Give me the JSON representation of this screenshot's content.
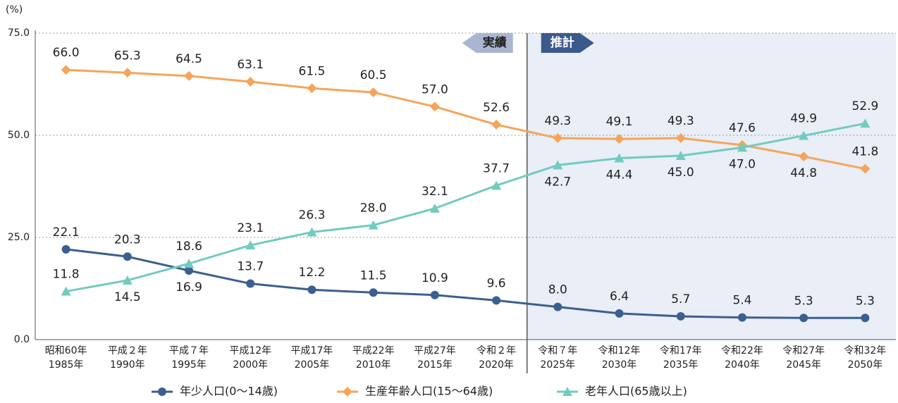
{
  "chart_data": {
    "type": "line",
    "unit_label": "(%)",
    "annotations": [
      "実績",
      "推計"
    ],
    "categories": [
      [
        "昭和60年",
        "1985年"
      ],
      [
        "平成２年",
        "1990年"
      ],
      [
        "平成７年",
        "1995年"
      ],
      [
        "平成12年",
        "2000年"
      ],
      [
        "平成17年",
        "2005年"
      ],
      [
        "平成22年",
        "2010年"
      ],
      [
        "平成27年",
        "2015年"
      ],
      [
        "令和２年",
        "2020年"
      ],
      [
        "令和７年",
        "2025年"
      ],
      [
        "令和12年",
        "2030年"
      ],
      [
        "令和17年",
        "2035年"
      ],
      [
        "令和22年",
        "2040年"
      ],
      [
        "令和27年",
        "2045年"
      ],
      [
        "令和32年",
        "2050年"
      ]
    ],
    "series": [
      {
        "name": "年少人口(0～14歳)",
        "color": "#3d5f8f",
        "marker": "circle",
        "values": [
          22.1,
          20.3,
          16.9,
          13.7,
          12.2,
          11.5,
          10.9,
          9.6,
          8.0,
          6.4,
          5.7,
          5.4,
          5.3,
          5.3
        ],
        "value_labels": [
          "22.1",
          "20.3",
          "16.9",
          "13.7",
          "12.2",
          "11.5",
          "10.9",
          "9.6",
          "8.0",
          "6.4",
          "5.7",
          "5.4",
          "5.3",
          "5.3"
        ]
      },
      {
        "name": "生産年齢人口(15～64歳)",
        "color": "#f5a55a",
        "marker": "diamond",
        "values": [
          66.0,
          65.3,
          64.5,
          63.1,
          61.5,
          60.5,
          57.0,
          52.6,
          49.3,
          49.1,
          49.3,
          47.6,
          44.8,
          41.8
        ],
        "value_labels": [
          "66.0",
          "65.3",
          "64.5",
          "63.1",
          "61.5",
          "60.5",
          "57.0",
          "52.6",
          "49.3",
          "49.1",
          "49.3",
          "47.6",
          "44.8",
          "41.8"
        ]
      },
      {
        "name": "老年人口(65歳以上)",
        "color": "#72cbbf",
        "marker": "triangle",
        "values": [
          11.8,
          14.5,
          18.6,
          23.1,
          26.3,
          28.0,
          32.1,
          37.7,
          42.7,
          44.4,
          45.0,
          47.0,
          49.9,
          52.9
        ],
        "value_labels": [
          "11.8",
          "14.5",
          "18.6",
          "23.1",
          "26.3",
          "28.0",
          "32.1",
          "37.7",
          "42.7",
          "44.4",
          "45.0",
          "47.0",
          "49.9",
          "52.9"
        ]
      }
    ],
    "ylim": [
      0,
      75
    ],
    "yticks": [
      {
        "value": 0,
        "label": "0.0"
      },
      {
        "value": 25,
        "label": "25.0"
      },
      {
        "value": 50,
        "label": "50.0"
      },
      {
        "value": 75,
        "label": "75.0"
      }
    ],
    "grid": true,
    "legend": "bottom"
  }
}
